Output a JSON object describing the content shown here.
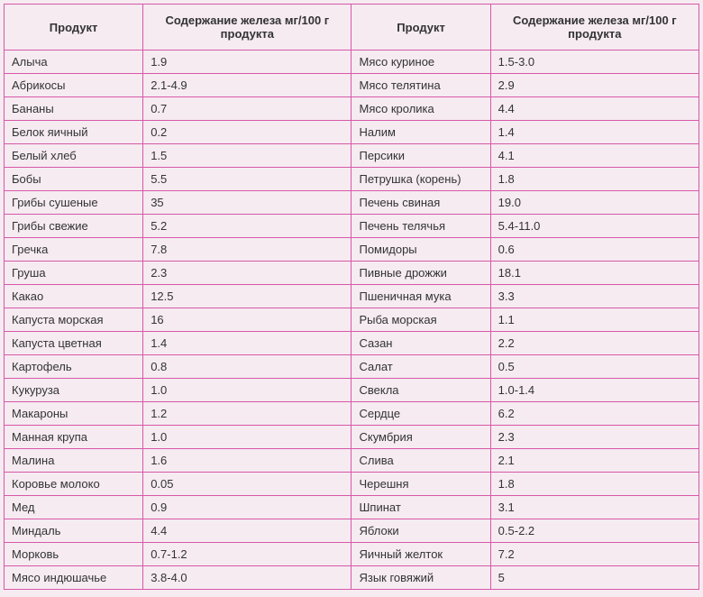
{
  "table": {
    "headers": {
      "product": "Продукт",
      "content": "Содержание железа мг/100 г продукта"
    },
    "rows": [
      {
        "p1": "Алыча",
        "v1": "1.9",
        "p2": "Мясо куриное",
        "v2": "1.5-3.0"
      },
      {
        "p1": "Абрикосы",
        "v1": "2.1-4.9",
        "p2": "Мясо телятина",
        "v2": "2.9"
      },
      {
        "p1": "Бананы",
        "v1": "0.7",
        "p2": "Мясо кролика",
        "v2": "4.4"
      },
      {
        "p1": "Белок яичный",
        "v1": "0.2",
        "p2": "Налим",
        "v2": "1.4"
      },
      {
        "p1": "Белый хлеб",
        "v1": "1.5",
        "p2": "Персики",
        "v2": "4.1"
      },
      {
        "p1": "Бобы",
        "v1": "5.5",
        "p2": "Петрушка (корень)",
        "v2": "1.8"
      },
      {
        "p1": "Грибы сушеные",
        "v1": "35",
        "p2": "Печень свиная",
        "v2": "19.0"
      },
      {
        "p1": "Грибы свежие",
        "v1": "5.2",
        "p2": "Печень телячья",
        "v2": "5.4-11.0"
      },
      {
        "p1": "Гречка",
        "v1": "7.8",
        "p2": "Помидоры",
        "v2": "0.6"
      },
      {
        "p1": "Груша",
        "v1": "2.3",
        "p2": "Пивные дрожжи",
        "v2": "18.1"
      },
      {
        "p1": "Какао",
        "v1": "12.5",
        "p2": "Пшеничная мука",
        "v2": "3.3"
      },
      {
        "p1": "Капуста морская",
        "v1": "16",
        "p2": "Рыба морская",
        "v2": "1.1"
      },
      {
        "p1": "Капуста цветная",
        "v1": "1.4",
        "p2": "Сазан",
        "v2": "2.2"
      },
      {
        "p1": "Картофель",
        "v1": "0.8",
        "p2": "Салат",
        "v2": "0.5"
      },
      {
        "p1": "Кукуруза",
        "v1": "1.0",
        "p2": "Свекла",
        "v2": "1.0-1.4"
      },
      {
        "p1": "Макароны",
        "v1": "1.2",
        "p2": "Сердце",
        "v2": "6.2"
      },
      {
        "p1": "Манная крупа",
        "v1": "1.0",
        "p2": "Скумбрия",
        "v2": "2.3"
      },
      {
        "p1": "Малина",
        "v1": "1.6",
        "p2": "Слива",
        "v2": "2.1"
      },
      {
        "p1": "Коровье молоко",
        "v1": "0.05",
        "p2": "Черешня",
        "v2": "1.8"
      },
      {
        "p1": "Мед",
        "v1": "0.9",
        "p2": "Шпинат",
        "v2": "3.1"
      },
      {
        "p1": "Миндаль",
        "v1": "4.4",
        "p2": "Яблоки",
        "v2": "0.5-2.2"
      },
      {
        "p1": "Морковь",
        "v1": "0.7-1.2",
        "p2": "Яичный желток",
        "v2": "7.2"
      },
      {
        "p1": "Мясо индюшачье",
        "v1": "3.8-4.0",
        "p2": "Язык говяжий",
        "v2": "5"
      }
    ],
    "colors": {
      "background": "#f5ebf1",
      "border": "#d858a8",
      "text": "#333333"
    }
  }
}
